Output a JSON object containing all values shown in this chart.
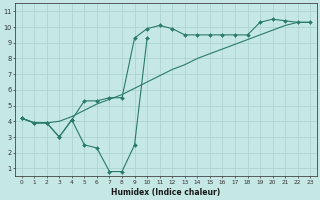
{
  "bg_color": "#c5e8e4",
  "grid_color": "#aed4d0",
  "line_color": "#2a7a68",
  "xlabel": "Humidex (Indice chaleur)",
  "xticks": [
    0,
    1,
    2,
    3,
    4,
    5,
    6,
    7,
    8,
    9,
    10,
    11,
    12,
    13,
    14,
    15,
    16,
    17,
    18,
    19,
    20,
    21,
    22,
    23
  ],
  "yticks": [
    1,
    2,
    3,
    4,
    5,
    6,
    7,
    8,
    9,
    10,
    11
  ],
  "series1_x": [
    0,
    1,
    2,
    3,
    4,
    5,
    6,
    7,
    8,
    9,
    10,
    11,
    12,
    13,
    14,
    15,
    16,
    17,
    18,
    19,
    20,
    21,
    22,
    23
  ],
  "series1_y": [
    4.2,
    3.9,
    3.9,
    4.0,
    4.3,
    4.7,
    5.1,
    5.4,
    5.7,
    6.1,
    6.5,
    6.9,
    7.3,
    7.6,
    8.0,
    8.3,
    8.6,
    8.9,
    9.2,
    9.5,
    9.8,
    10.1,
    10.3,
    10.3
  ],
  "series2_x": [
    0,
    1,
    2,
    3,
    4,
    5,
    6,
    7,
    8,
    9,
    10,
    11,
    12,
    13,
    14,
    15,
    16,
    17,
    18,
    19,
    20,
    21,
    22,
    23
  ],
  "series2_y": [
    4.2,
    3.9,
    3.9,
    3.0,
    4.1,
    5.3,
    5.3,
    5.5,
    5.5,
    9.3,
    9.9,
    10.1,
    9.9,
    9.5,
    9.5,
    9.5,
    9.5,
    9.5,
    9.5,
    10.3,
    10.5,
    10.4,
    10.3,
    10.3
  ],
  "series3_x": [
    0,
    1,
    2,
    3,
    4,
    5,
    6,
    7,
    8,
    9,
    10
  ],
  "series3_y": [
    4.2,
    3.9,
    3.9,
    3.0,
    4.1,
    2.5,
    2.3,
    0.8,
    0.8,
    2.5,
    9.3
  ]
}
